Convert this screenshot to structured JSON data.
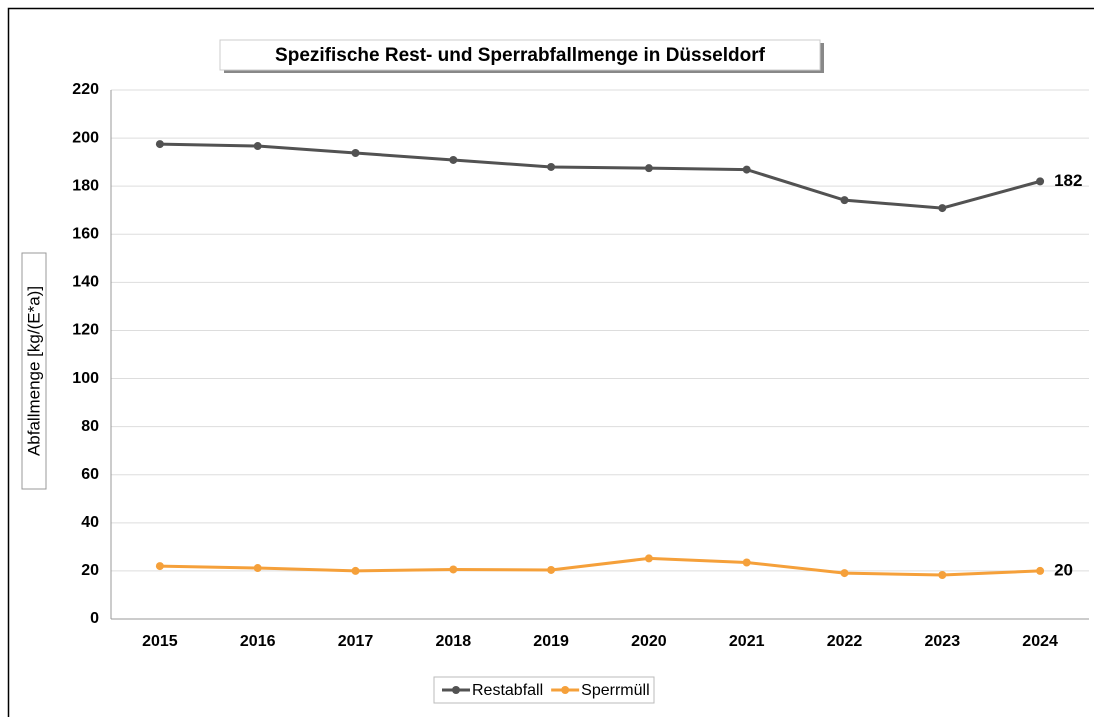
{
  "chart_data": {
    "type": "line",
    "title": "Spezifische Rest- und Sperrabfallmenge  in Düsseldorf",
    "y_label": "Abfallmenge [kg/(E*a)]",
    "categories": [
      "2015",
      "2016",
      "2017",
      "2018",
      "2019",
      "2020",
      "2021",
      "2022",
      "2023",
      "2024"
    ],
    "series": [
      {
        "name": "Restabfall",
        "color": "#525252",
        "values": [
          197.5,
          196.7,
          193.8,
          190.9,
          188,
          187.5,
          186.9,
          174.2,
          170.9,
          182
        ]
      },
      {
        "name": "Sperrmüll",
        "color": "#f5a03a",
        "values": [
          22,
          21.2,
          20,
          20.6,
          20.4,
          25.2,
          23.5,
          19.1,
          18.3,
          20
        ]
      }
    ],
    "ylim": [
      0,
      220
    ],
    "yticks": [
      0,
      20,
      40,
      60,
      80,
      100,
      120,
      140,
      160,
      180,
      200,
      220
    ],
    "grid": true,
    "legend": "bottom"
  }
}
